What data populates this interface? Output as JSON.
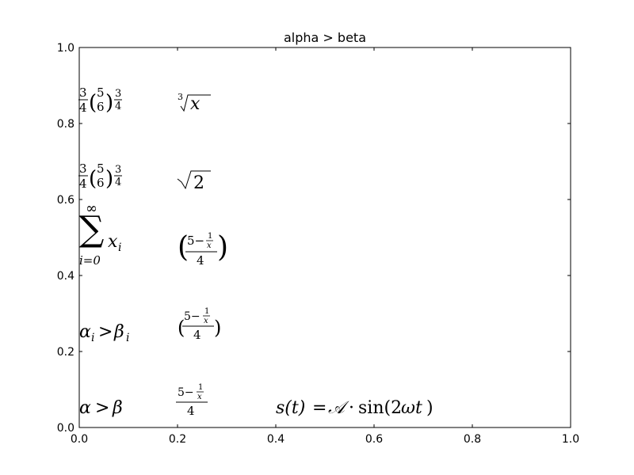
{
  "chart_data": {
    "type": "scatter",
    "title": "alpha > beta",
    "xlabel": "",
    "ylabel": "",
    "xlim": [
      0.0,
      1.0
    ],
    "ylim": [
      0.0,
      1.0
    ],
    "grid": false,
    "x_ticks": [
      "0.0",
      "0.2",
      "0.4",
      "0.6",
      "0.8",
      "1.0"
    ],
    "y_ticks": [
      "0.0",
      "0.2",
      "0.4",
      "0.6",
      "0.8",
      "1.0"
    ],
    "annotations": [
      {
        "id": "cuberoot",
        "x": 0.2,
        "y": 0.825,
        "text": "∛x"
      },
      {
        "id": "binom-top",
        "x": 0.0,
        "y": 0.825,
        "text": "3/4 (5 over 6) 3/4"
      },
      {
        "id": "sqrt2",
        "x": 0.2,
        "y": 0.625,
        "text": "√2"
      },
      {
        "id": "binom-mid",
        "x": 0.0,
        "y": 0.625,
        "text": "3/4 (5 over 6) 3/4"
      },
      {
        "id": "sum",
        "x": 0.0,
        "y": 0.425,
        "text": "∑ i=0 ∞ x_i"
      },
      {
        "id": "frac-big-paren",
        "x": 0.2,
        "y": 0.425,
        "text": "((5 − 1/x)/4)"
      },
      {
        "id": "alpha-i",
        "x": 0.0,
        "y": 0.225,
        "text": "α_i > β_i"
      },
      {
        "id": "frac-small-paren",
        "x": 0.2,
        "y": 0.225,
        "text": "((5 − 1/x)/4)"
      },
      {
        "id": "alpha-beta",
        "x": 0.0,
        "y": 0.025,
        "text": "α > β"
      },
      {
        "id": "frac-plain",
        "x": 0.2,
        "y": 0.025,
        "text": "(5 − 1/x)/4"
      },
      {
        "id": "signal",
        "x": 0.4,
        "y": 0.025,
        "text": "s(t) = 𝒜 · sin(2ωt)"
      }
    ]
  }
}
